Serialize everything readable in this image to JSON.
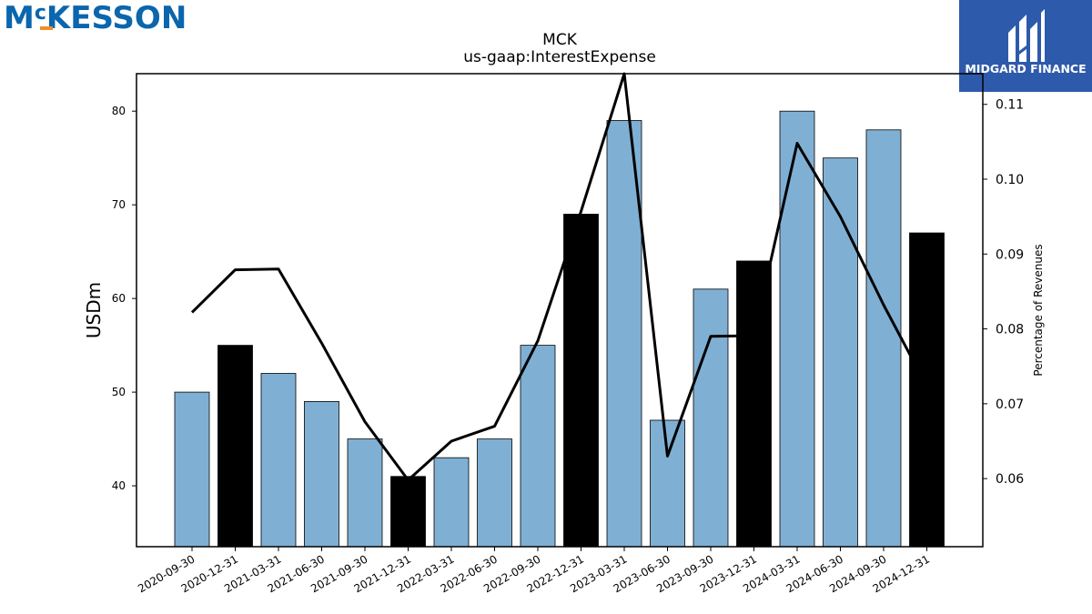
{
  "brand": {
    "company_logo_text": "McKESSON",
    "company_logo_superscript": "c",
    "company_logo_main": "KESSON",
    "company_logo_initial": "M",
    "partner_logo_name": "MIDGARD FINANCE",
    "brand_blue": "#0a66ad",
    "brand_orange": "#f28c28",
    "partner_blue": "#2e5aac"
  },
  "chart_data": {
    "type": "bar",
    "title": "MCK",
    "subtitle": "us-gaap:InterestExpense",
    "ylabel": "USDm",
    "y2label": "Percentage of Revenues",
    "categories": [
      "2020-09-30",
      "2020-12-31",
      "2021-03-31",
      "2021-06-30",
      "2021-09-30",
      "2021-12-31",
      "2022-03-31",
      "2022-06-30",
      "2022-09-30",
      "2022-12-31",
      "2023-03-31",
      "2023-06-30",
      "2023-09-30",
      "2023-12-31",
      "2024-03-31",
      "2024-06-30",
      "2024-09-30",
      "2024-12-31"
    ],
    "series": [
      {
        "values": [
          50,
          55,
          52,
          49,
          45,
          41,
          43,
          45,
          55,
          69,
          79,
          47,
          61,
          64,
          80,
          75,
          78,
          67
        ],
        "highlight": [
          false,
          true,
          false,
          false,
          false,
          true,
          false,
          false,
          false,
          true,
          false,
          false,
          false,
          true,
          false,
          false,
          false,
          true
        ],
        "color": "#7fb0d4",
        "highlight_color": "#000000"
      },
      {
        "axis": "right",
        "values": [
          0.0822,
          0.0879,
          0.088,
          0.0781,
          0.0676,
          0.0598,
          0.065,
          0.067,
          0.0784,
          0.0957,
          0.1141,
          0.063,
          0.079,
          0.0791,
          0.1048,
          0.095,
          0.0832,
          0.0723
        ],
        "color": "#000000"
      }
    ],
    "ylim": [
      33.5,
      84
    ],
    "y2lim": [
      0.0509,
      0.1141
    ],
    "yticks": [
      "40",
      "50",
      "60",
      "70",
      "80"
    ],
    "y2ticks": [
      "0.06",
      "0.07",
      "0.08",
      "0.09",
      "0.10",
      "0.11"
    ],
    "grid": false
  }
}
